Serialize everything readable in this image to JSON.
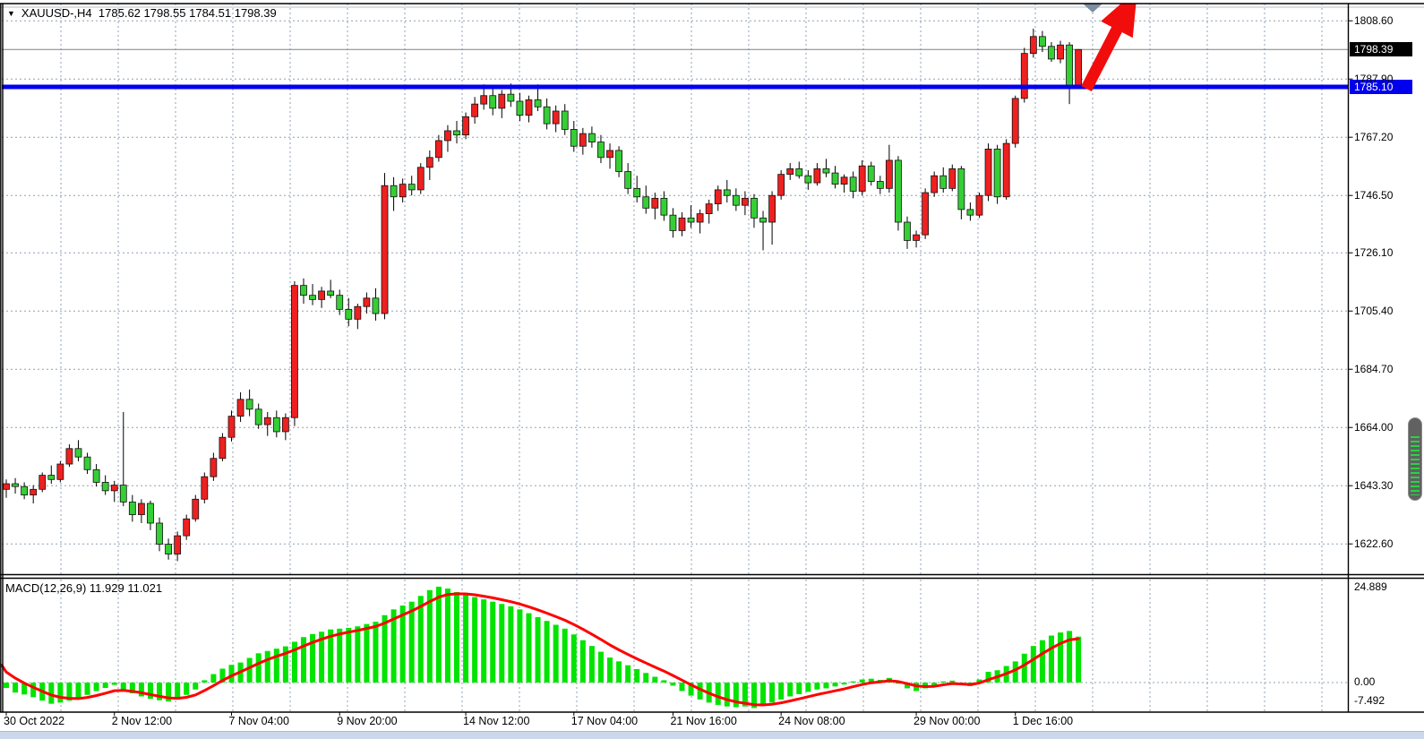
{
  "title": {
    "symbol": "XAUUSD-,H4",
    "ohlc": "1785.62 1798.55 1784.51 1798.39",
    "dropdown_icon": "▼"
  },
  "price_axis": {
    "current_badge": "1798.39",
    "level_badge": "1785.10"
  },
  "colors": {
    "bull": "#ee2020",
    "bear": "#35cf35",
    "wick": "#000000",
    "macd_hist": "#00e400",
    "macd_signal": "#ff0000",
    "hline": "#0000ee",
    "current_line": "#808080",
    "grid": "#8fa0b4",
    "arrow": "#f20d0d",
    "marker_triangle": "#7b8fa3"
  },
  "chart_data": {
    "type": "candlestick+macd",
    "symbol": "XAUUSD",
    "period": "H4",
    "title": "XAUUSD-,H4 1785.62 1798.55 1784.51 1798.39",
    "ylim": [
      1615.5,
      1813.5
    ],
    "hline_price": 1785.1,
    "current_price": 1798.39,
    "price_gridlines": [
      "1808.60",
      "1787.90",
      "1767.20",
      "1746.50",
      "1726.10",
      "1705.40",
      "1684.70",
      "1664.00",
      "1643.30",
      "1622.60"
    ],
    "x_ticks": [
      {
        "bar": 0,
        "label": "30 Oct 2022"
      },
      {
        "bar": 12,
        "label": "2 Nov 12:00"
      },
      {
        "bar": 25,
        "label": "7 Nov 04:00"
      },
      {
        "bar": 37,
        "label": "9 Nov 20:00"
      },
      {
        "bar": 51,
        "label": "14 Nov 12:00"
      },
      {
        "bar": 63,
        "label": "17 Nov 04:00"
      },
      {
        "bar": 74,
        "label": "21 Nov 16:00"
      },
      {
        "bar": 86,
        "label": "24 Nov 08:00"
      },
      {
        "bar": 101,
        "label": "29 Nov 00:00"
      },
      {
        "bar": 112,
        "label": "1 Dec 16:00"
      }
    ],
    "candles": [
      [
        1642.0,
        1645.5,
        1639.0,
        1644.0
      ],
      [
        1644.0,
        1646.0,
        1640.5,
        1643.0
      ],
      [
        1643.0,
        1644.5,
        1638.5,
        1640.0
      ],
      [
        1640.0,
        1643.5,
        1637.0,
        1642.0
      ],
      [
        1642.0,
        1648.0,
        1641.0,
        1647.0
      ],
      [
        1647.0,
        1650.5,
        1644.0,
        1645.5
      ],
      [
        1645.5,
        1652.0,
        1644.5,
        1651.0
      ],
      [
        1651.0,
        1658.0,
        1650.0,
        1656.5
      ],
      [
        1656.5,
        1659.5,
        1652.0,
        1653.5
      ],
      [
        1653.5,
        1655.0,
        1647.5,
        1649.0
      ],
      [
        1649.0,
        1651.0,
        1643.0,
        1644.5
      ],
      [
        1644.5,
        1647.0,
        1640.0,
        1641.5
      ],
      [
        1641.5,
        1645.0,
        1637.5,
        1643.5
      ],
      [
        1643.5,
        1669.5,
        1636.0,
        1637.5
      ],
      [
        1637.5,
        1640.0,
        1630.5,
        1633.0
      ],
      [
        1633.0,
        1638.5,
        1630.0,
        1637.0
      ],
      [
        1637.0,
        1638.0,
        1627.5,
        1630.0
      ],
      [
        1630.0,
        1632.0,
        1620.0,
        1622.5
      ],
      [
        1622.5,
        1624.5,
        1617.0,
        1619.0
      ],
      [
        1619.0,
        1627.0,
        1616.5,
        1625.5
      ],
      [
        1625.5,
        1633.0,
        1624.0,
        1631.5
      ],
      [
        1631.5,
        1640.0,
        1630.5,
        1638.5
      ],
      [
        1638.5,
        1648.0,
        1637.0,
        1646.5
      ],
      [
        1646.5,
        1655.0,
        1645.0,
        1653.0
      ],
      [
        1653.0,
        1662.0,
        1652.0,
        1660.5
      ],
      [
        1660.5,
        1670.0,
        1659.0,
        1668.0
      ],
      [
        1668.0,
        1676.5,
        1666.0,
        1674.0
      ],
      [
        1674.0,
        1677.5,
        1668.0,
        1670.5
      ],
      [
        1670.5,
        1672.5,
        1663.5,
        1665.0
      ],
      [
        1665.0,
        1669.5,
        1661.0,
        1667.5
      ],
      [
        1667.5,
        1670.0,
        1660.5,
        1662.5
      ],
      [
        1662.5,
        1669.0,
        1659.5,
        1667.5
      ],
      [
        1667.5,
        1716.0,
        1664.5,
        1714.5
      ],
      [
        1714.5,
        1717.0,
        1708.0,
        1711.0
      ],
      [
        1711.0,
        1715.0,
        1707.5,
        1709.5
      ],
      [
        1709.5,
        1714.0,
        1706.5,
        1712.5
      ],
      [
        1712.5,
        1716.5,
        1710.0,
        1711.0
      ],
      [
        1711.0,
        1713.0,
        1704.0,
        1706.0
      ],
      [
        1706.0,
        1710.0,
        1700.0,
        1702.5
      ],
      [
        1702.5,
        1708.0,
        1699.0,
        1707.0
      ],
      [
        1707.0,
        1712.0,
        1704.5,
        1710.0
      ],
      [
        1710.0,
        1713.5,
        1702.0,
        1704.5
      ],
      [
        1704.5,
        1754.5,
        1702.5,
        1750.0
      ],
      [
        1750.0,
        1753.0,
        1741.0,
        1746.0
      ],
      [
        1746.0,
        1752.5,
        1744.0,
        1750.5
      ],
      [
        1750.5,
        1753.5,
        1746.5,
        1748.5
      ],
      [
        1748.5,
        1758.0,
        1747.0,
        1756.5
      ],
      [
        1756.5,
        1762.5,
        1752.0,
        1760.0
      ],
      [
        1760.0,
        1768.0,
        1758.5,
        1766.0
      ],
      [
        1766.0,
        1771.5,
        1762.0,
        1769.5
      ],
      [
        1769.5,
        1773.0,
        1765.0,
        1768.0
      ],
      [
        1768.0,
        1776.0,
        1766.5,
        1774.5
      ],
      [
        1774.5,
        1781.5,
        1772.0,
        1779.0
      ],
      [
        1779.0,
        1786.0,
        1777.0,
        1782.0
      ],
      [
        1782.0,
        1785.5,
        1775.0,
        1777.5
      ],
      [
        1777.5,
        1784.0,
        1774.0,
        1782.5
      ],
      [
        1782.5,
        1786.3,
        1778.0,
        1780.0
      ],
      [
        1780.0,
        1783.0,
        1773.0,
        1775.0
      ],
      [
        1775.0,
        1782.0,
        1772.5,
        1780.5
      ],
      [
        1780.5,
        1786.0,
        1776.5,
        1778.0
      ],
      [
        1778.0,
        1781.0,
        1770.0,
        1772.0
      ],
      [
        1772.0,
        1778.5,
        1769.0,
        1776.5
      ],
      [
        1776.5,
        1779.0,
        1768.0,
        1770.0
      ],
      [
        1770.0,
        1773.0,
        1762.0,
        1764.0
      ],
      [
        1764.0,
        1770.5,
        1761.0,
        1768.5
      ],
      [
        1768.5,
        1771.0,
        1763.5,
        1765.5
      ],
      [
        1765.5,
        1768.0,
        1758.0,
        1760.0
      ],
      [
        1760.0,
        1765.0,
        1756.0,
        1762.5
      ],
      [
        1762.5,
        1764.0,
        1753.0,
        1755.0
      ],
      [
        1755.0,
        1758.0,
        1747.0,
        1749.0
      ],
      [
        1749.0,
        1753.5,
        1744.0,
        1746.0
      ],
      [
        1746.0,
        1750.0,
        1740.0,
        1742.0
      ],
      [
        1742.0,
        1747.5,
        1738.0,
        1745.5
      ],
      [
        1745.5,
        1748.0,
        1737.5,
        1739.5
      ],
      [
        1739.5,
        1742.0,
        1731.5,
        1734.0
      ],
      [
        1734.0,
        1740.5,
        1732.0,
        1738.5
      ],
      [
        1738.5,
        1743.0,
        1735.0,
        1737.0
      ],
      [
        1737.0,
        1741.5,
        1733.0,
        1740.0
      ],
      [
        1740.0,
        1745.0,
        1736.5,
        1743.5
      ],
      [
        1743.5,
        1750.0,
        1741.0,
        1748.5
      ],
      [
        1748.5,
        1752.0,
        1744.0,
        1746.5
      ],
      [
        1746.5,
        1749.0,
        1741.0,
        1743.0
      ],
      [
        1743.0,
        1748.0,
        1739.5,
        1745.5
      ],
      [
        1745.5,
        1747.0,
        1735.0,
        1738.5
      ],
      [
        1738.5,
        1741.0,
        1727.0,
        1737.0
      ],
      [
        1737.0,
        1748.0,
        1729.0,
        1746.5
      ],
      [
        1746.5,
        1755.5,
        1745.0,
        1754.0
      ],
      [
        1754.0,
        1758.0,
        1752.0,
        1756.0
      ],
      [
        1756.0,
        1758.5,
        1752.5,
        1753.5
      ],
      [
        1753.5,
        1755.5,
        1748.5,
        1751.0
      ],
      [
        1751.0,
        1758.0,
        1750.0,
        1756.0
      ],
      [
        1756.0,
        1759.5,
        1753.0,
        1754.5
      ],
      [
        1754.5,
        1757.0,
        1749.0,
        1750.5
      ],
      [
        1750.5,
        1754.0,
        1747.5,
        1753.0
      ],
      [
        1753.0,
        1755.0,
        1745.5,
        1748.0
      ],
      [
        1748.0,
        1759.0,
        1746.5,
        1757.0
      ],
      [
        1757.0,
        1758.5,
        1750.0,
        1751.5
      ],
      [
        1751.5,
        1753.5,
        1747.0,
        1749.0
      ],
      [
        1749.0,
        1764.5,
        1747.5,
        1759.0
      ],
      [
        1759.0,
        1760.5,
        1734.0,
        1737.0
      ],
      [
        1737.0,
        1739.0,
        1727.5,
        1730.5
      ],
      [
        1730.5,
        1734.0,
        1728.0,
        1732.5
      ],
      [
        1732.5,
        1749.0,
        1731.0,
        1747.5
      ],
      [
        1747.5,
        1755.0,
        1746.0,
        1753.5
      ],
      [
        1753.5,
        1756.5,
        1747.5,
        1749.0
      ],
      [
        1749.0,
        1757.5,
        1748.0,
        1756.0
      ],
      [
        1756.0,
        1757.0,
        1738.0,
        1741.5
      ],
      [
        1741.5,
        1744.0,
        1737.5,
        1739.5
      ],
      [
        1739.5,
        1747.5,
        1738.5,
        1746.5
      ],
      [
        1746.5,
        1765.0,
        1744.5,
        1763.0
      ],
      [
        1763.0,
        1764.5,
        1743.5,
        1746.0
      ],
      [
        1746.0,
        1766.5,
        1745.0,
        1765.0
      ],
      [
        1765.0,
        1782.0,
        1763.5,
        1781.0
      ],
      [
        1781.0,
        1799.0,
        1779.5,
        1797.0
      ],
      [
        1797.0,
        1805.8,
        1795.5,
        1803.0
      ],
      [
        1803.0,
        1805.0,
        1797.5,
        1799.5
      ],
      [
        1799.5,
        1801.0,
        1794.0,
        1795.0
      ],
      [
        1795.0,
        1801.5,
        1793.5,
        1800.0
      ],
      [
        1800.0,
        1801.0,
        1779.0,
        1785.6
      ],
      [
        1785.62,
        1798.55,
        1784.51,
        1798.39
      ]
    ],
    "macd": {
      "label": "MACD(12,26,9) 11.929 11.021",
      "macd_value": 11.929,
      "signal_value": 11.021,
      "axis_max": "24.889",
      "axis_zero": "0.00",
      "axis_min": "-7.492",
      "signal_alpha": 0.3,
      "signal_seed": 4.5,
      "values": [
        -1.4,
        -2.6,
        -3.1,
        -3.8,
        -4.7,
        -5.5,
        -5.2,
        -4.7,
        -4.3,
        -3.2,
        -2.2,
        -1.4,
        -0.6,
        -1.8,
        -2.8,
        -3.6,
        -4.2,
        -4.6,
        -4.9,
        -4.4,
        -3.2,
        -1.8,
        0.6,
        2.2,
        3.6,
        4.6,
        5.2,
        6.4,
        7.6,
        8.2,
        8.8,
        9.4,
        10.6,
        11.8,
        12.6,
        13.2,
        13.8,
        14.0,
        14.2,
        14.6,
        15.2,
        15.8,
        17.5,
        19.0,
        20.0,
        21.0,
        22.5,
        24.0,
        24.889,
        24.4,
        23.5,
        23.0,
        22.2,
        21.6,
        21.0,
        20.4,
        19.8,
        19.0,
        18.0,
        17.0,
        16.0,
        15.0,
        14.0,
        12.5,
        11.0,
        9.5,
        8.0,
        6.5,
        5.5,
        4.5,
        3.5,
        2.5,
        1.5,
        0.6,
        -0.8,
        -2.2,
        -3.4,
        -4.4,
        -5.2,
        -5.8,
        -6.2,
        -6.4,
        -6.2,
        -6.6,
        -6.0,
        -5.2,
        -4.4,
        -3.6,
        -3.0,
        -2.4,
        -1.8,
        -1.5,
        -1.0,
        -0.5,
        0.3,
        0.8,
        1.0,
        0.7,
        1.2,
        -0.3,
        -1.5,
        -2.2,
        -1.5,
        -0.8,
        0.3,
        0.5,
        -0.6,
        -0.9,
        0.8,
        2.8,
        3.2,
        4.3,
        5.5,
        7.5,
        9.5,
        11.0,
        12.2,
        13.0,
        13.4,
        11.929
      ]
    }
  }
}
